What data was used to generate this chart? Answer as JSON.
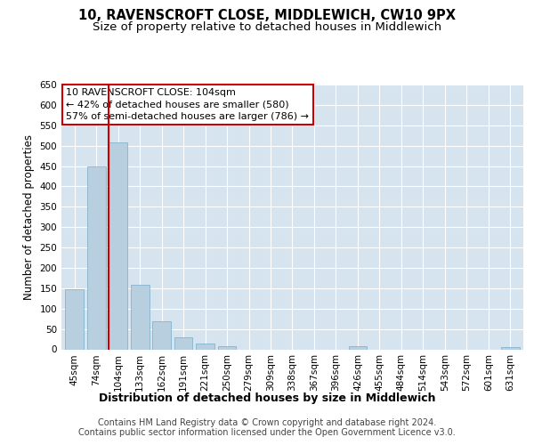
{
  "title": "10, RAVENSCROFT CLOSE, MIDDLEWICH, CW10 9PX",
  "subtitle": "Size of property relative to detached houses in Middlewich",
  "xlabel": "Distribution of detached houses by size in Middlewich",
  "ylabel": "Number of detached properties",
  "categories": [
    "45sqm",
    "74sqm",
    "104sqm",
    "133sqm",
    "162sqm",
    "191sqm",
    "221sqm",
    "250sqm",
    "279sqm",
    "309sqm",
    "338sqm",
    "367sqm",
    "396sqm",
    "426sqm",
    "455sqm",
    "484sqm",
    "514sqm",
    "543sqm",
    "572sqm",
    "601sqm",
    "631sqm"
  ],
  "values": [
    147,
    450,
    508,
    158,
    68,
    30,
    14,
    8,
    0,
    0,
    0,
    0,
    0,
    7,
    0,
    0,
    0,
    0,
    0,
    0,
    5
  ],
  "bar_color": "#b8cfe0",
  "bar_edge_color": "#7aaac8",
  "highlight_index": 2,
  "highlight_line_color": "#cc0000",
  "ylim": [
    0,
    650
  ],
  "yticks": [
    0,
    50,
    100,
    150,
    200,
    250,
    300,
    350,
    400,
    450,
    500,
    550,
    600,
    650
  ],
  "annotation_text": "10 RAVENSCROFT CLOSE: 104sqm\n← 42% of detached houses are smaller (580)\n57% of semi-detached houses are larger (786) →",
  "annotation_box_color": "#ffffff",
  "annotation_box_edge": "#cc0000",
  "footer_line1": "Contains HM Land Registry data © Crown copyright and database right 2024.",
  "footer_line2": "Contains public sector information licensed under the Open Government Licence v3.0.",
  "fig_bg_color": "#ffffff",
  "plot_bg_color": "#d6e4f0",
  "title_fontsize": 10.5,
  "subtitle_fontsize": 9.5,
  "xlabel_fontsize": 9,
  "ylabel_fontsize": 8.5,
  "tick_fontsize": 7.5,
  "annotation_fontsize": 8,
  "footer_fontsize": 7
}
